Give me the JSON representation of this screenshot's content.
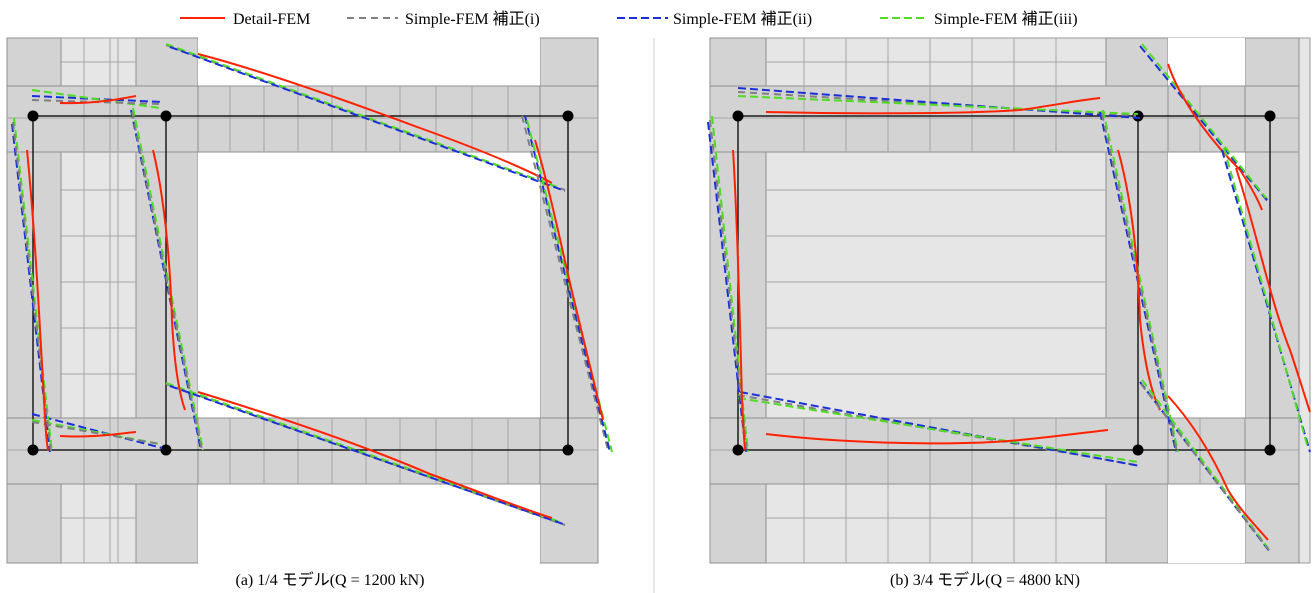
{
  "legend": {
    "items": [
      {
        "label": "Detail-FEM",
        "style": "solid",
        "color": "#ff2200"
      },
      {
        "label": "Simple-FEM 補正(i)",
        "style": "dashed",
        "color": "#808080"
      },
      {
        "label": "Simple-FEM 補正(ii)",
        "style": "dashed",
        "color": "#1a2fd8"
      },
      {
        "label": "Simple-FEM 補正(iii)",
        "style": "dashed",
        "color": "#4fdc22"
      }
    ]
  },
  "panels": [
    {
      "id": "a",
      "caption": "(a) 1/4 モデル(Q = 1200 kN)"
    },
    {
      "id": "b",
      "caption": "(b) 3/4 モデル(Q = 4800 kN)"
    }
  ]
}
